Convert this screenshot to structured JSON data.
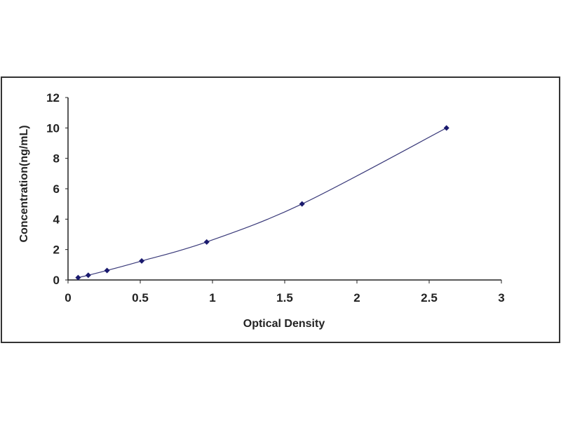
{
  "chart_data": {
    "type": "scatter",
    "title": "",
    "xlabel": "Optical Density",
    "ylabel": "Concentration(ng/mL)",
    "xlim": [
      0,
      3
    ],
    "ylim": [
      0,
      12
    ],
    "x_ticks": [
      "0",
      "0.5",
      "1",
      "1.5",
      "2",
      "2.5",
      "3"
    ],
    "y_ticks": [
      "0",
      "2",
      "4",
      "6",
      "8",
      "10",
      "12"
    ],
    "grid": false,
    "legend": "none",
    "trendline": "smooth curve through points",
    "colors": {
      "points": "#1a1a6e",
      "line": "#3a3a7a",
      "frame": "#333333"
    },
    "series": [
      {
        "x": [
          0.07,
          0.14,
          0.27,
          0.51,
          0.96,
          1.62,
          2.62
        ],
        "y": [
          0.156,
          0.312,
          0.625,
          1.25,
          2.5,
          5,
          10
        ]
      }
    ]
  }
}
